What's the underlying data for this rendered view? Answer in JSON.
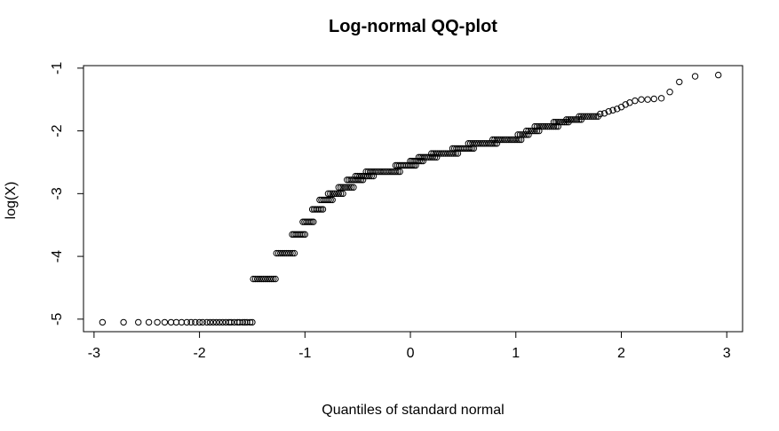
{
  "chart_data": {
    "type": "scatter",
    "title": "Log-normal QQ-plot",
    "xlabel": "Quantiles of standard normal",
    "ylabel": "log(X)",
    "xlim": [
      -3.1,
      3.15
    ],
    "ylim": [
      -5.2,
      -0.96
    ],
    "xticks": [
      -3,
      -2,
      -1,
      0,
      1,
      2,
      3
    ],
    "xtick_labels": [
      "-3",
      "-2",
      "-1",
      "0",
      "1",
      "2",
      "3"
    ],
    "yticks": [
      -5,
      -4,
      -3,
      -2,
      -1
    ],
    "ytick_labels": [
      "-5",
      "-4",
      "-3",
      "-2",
      "-1"
    ],
    "grid": false,
    "marker": "open-circle",
    "series_color": "#000000",
    "segments": [
      {
        "x0": -1.49,
        "x1": -1.28,
        "y": -4.36,
        "n": 12
      },
      {
        "x0": -1.27,
        "x1": -1.1,
        "y": -3.95,
        "n": 10
      },
      {
        "x0": -1.12,
        "x1": -1.0,
        "y": -3.65,
        "n": 8
      },
      {
        "x0": -1.02,
        "x1": -0.92,
        "y": -3.45,
        "n": 7
      },
      {
        "x0": -0.93,
        "x1": -0.83,
        "y": -3.25,
        "n": 7
      },
      {
        "x0": -0.86,
        "x1": -0.74,
        "y": -3.1,
        "n": 8
      },
      {
        "x0": -0.78,
        "x1": -0.64,
        "y": -3.0,
        "n": 8
      },
      {
        "x0": -0.68,
        "x1": -0.54,
        "y": -2.9,
        "n": 8
      },
      {
        "x0": -0.6,
        "x1": -0.45,
        "y": -2.78,
        "n": 9
      },
      {
        "x0": -0.52,
        "x1": -0.35,
        "y": -2.72,
        "n": 10
      },
      {
        "x0": -0.42,
        "x1": -0.1,
        "y": -2.65,
        "n": 18
      },
      {
        "x0": -0.14,
        "x1": 0.05,
        "y": -2.55,
        "n": 12
      },
      {
        "x0": 0.0,
        "x1": 0.12,
        "y": -2.48,
        "n": 8
      },
      {
        "x0": 0.08,
        "x1": 0.25,
        "y": -2.42,
        "n": 10
      },
      {
        "x0": 0.2,
        "x1": 0.45,
        "y": -2.36,
        "n": 14
      },
      {
        "x0": 0.4,
        "x1": 0.6,
        "y": -2.28,
        "n": 12
      },
      {
        "x0": 0.55,
        "x1": 0.82,
        "y": -2.2,
        "n": 15
      },
      {
        "x0": 0.78,
        "x1": 1.05,
        "y": -2.14,
        "n": 15
      },
      {
        "x0": 1.02,
        "x1": 1.12,
        "y": -2.06,
        "n": 6
      },
      {
        "x0": 1.1,
        "x1": 1.22,
        "y": -2.0,
        "n": 7
      },
      {
        "x0": 1.18,
        "x1": 1.4,
        "y": -1.93,
        "n": 12
      },
      {
        "x0": 1.36,
        "x1": 1.5,
        "y": -1.86,
        "n": 8
      },
      {
        "x0": 1.48,
        "x1": 1.62,
        "y": -1.82,
        "n": 8
      },
      {
        "x0": 1.6,
        "x1": 1.78,
        "y": -1.77,
        "n": 10
      }
    ],
    "points": [
      [
        -2.92,
        -5.05
      ],
      [
        -2.72,
        -5.05
      ],
      [
        -2.58,
        -5.05
      ],
      [
        -2.48,
        -5.05
      ],
      [
        -2.4,
        -5.05
      ],
      [
        -2.33,
        -5.05
      ],
      [
        -2.27,
        -5.05
      ],
      [
        -2.22,
        -5.05
      ],
      [
        -2.17,
        -5.05
      ],
      [
        -2.12,
        -5.05
      ],
      [
        -2.08,
        -5.05
      ],
      [
        -2.04,
        -5.05
      ],
      [
        -2.0,
        -5.05
      ],
      [
        -1.97,
        -5.05
      ],
      [
        -1.93,
        -5.05
      ],
      [
        -1.9,
        -5.05
      ],
      [
        -1.87,
        -5.05
      ],
      [
        -1.84,
        -5.05
      ],
      [
        -1.81,
        -5.05
      ],
      [
        -1.78,
        -5.05
      ],
      [
        -1.75,
        -5.05
      ],
      [
        -1.72,
        -5.05
      ],
      [
        -1.7,
        -5.05
      ],
      [
        -1.67,
        -5.05
      ],
      [
        -1.64,
        -5.05
      ],
      [
        -1.62,
        -5.05
      ],
      [
        -1.59,
        -5.05
      ],
      [
        -1.57,
        -5.05
      ],
      [
        -1.55,
        -5.05
      ],
      [
        -1.52,
        -5.05
      ],
      [
        -1.5,
        -5.05
      ],
      [
        1.8,
        -1.73
      ],
      [
        1.84,
        -1.72
      ],
      [
        1.88,
        -1.69
      ],
      [
        1.92,
        -1.67
      ],
      [
        1.96,
        -1.65
      ],
      [
        2.0,
        -1.62
      ],
      [
        2.04,
        -1.58
      ],
      [
        2.08,
        -1.55
      ],
      [
        2.13,
        -1.52
      ],
      [
        2.19,
        -1.5
      ],
      [
        2.25,
        -1.5
      ],
      [
        2.31,
        -1.49
      ],
      [
        2.38,
        -1.48
      ],
      [
        2.46,
        -1.38
      ],
      [
        2.55,
        -1.22
      ],
      [
        2.7,
        -1.13
      ],
      [
        2.92,
        -1.11
      ]
    ]
  }
}
